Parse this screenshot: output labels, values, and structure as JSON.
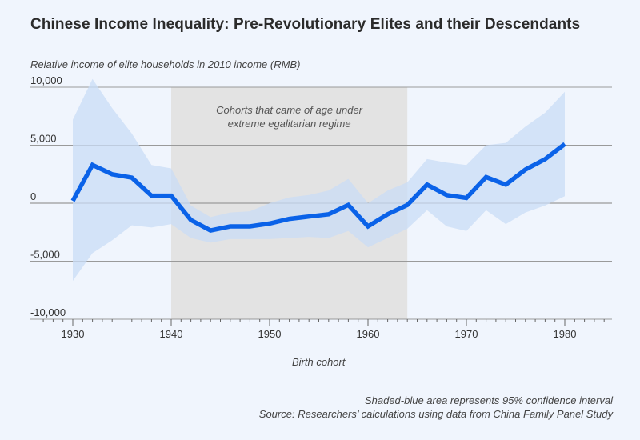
{
  "title": "Chinese Income Inequality: Pre-Revolutionary Elites and their Descendants",
  "footnotes": {
    "ci_note": "Shaded-blue area represents 95% confidence interval",
    "source": "Source: Researchers’ calculations using data from China Family Panel Study"
  },
  "colors": {
    "line": "#0a62e8",
    "band": "#c9dcf6",
    "shade": "#e3e3e3",
    "grid": "#9a9a9a",
    "background": "#f0f5fd"
  },
  "chart_data": {
    "type": "line",
    "title": "Chinese Income Inequality: Pre-Revolutionary Elites and their Descendants",
    "ylabel": "Relative income of elite households in 2010 income (RMB)",
    "xlabel": "Birth cohort",
    "xlim": [
      1926,
      1985
    ],
    "ylim": [
      -10000,
      10000
    ],
    "x_ticks": [
      1930,
      1940,
      1950,
      1960,
      1970,
      1980
    ],
    "x_tick_labels": [
      "1930",
      "1940",
      "1950",
      "1960",
      "1970",
      "1980"
    ],
    "y_ticks": [
      10000,
      5000,
      0,
      -5000,
      -10000
    ],
    "y_tick_labels": [
      "10,000",
      "5,000",
      "0",
      "-5,000",
      "-10,000"
    ],
    "grid": true,
    "x": [
      1930,
      1932,
      1934,
      1936,
      1938,
      1940,
      1942,
      1944,
      1946,
      1948,
      1950,
      1952,
      1954,
      1956,
      1958,
      1960,
      1962,
      1964,
      1966,
      1968,
      1970,
      1972,
      1974,
      1976,
      1978,
      1980
    ],
    "series": [
      {
        "name": "Relative income",
        "values": [
          200,
          3300,
          2500,
          2200,
          650,
          650,
          -1450,
          -2350,
          -2000,
          -2000,
          -1750,
          -1350,
          -1150,
          -950,
          -150,
          -2000,
          -950,
          -150,
          1600,
          700,
          450,
          2250,
          1600,
          2900,
          3800,
          5100
        ]
      }
    ],
    "confidence_interval": {
      "level": "95%",
      "upper": [
        7200,
        10700,
        8200,
        6000,
        3300,
        3000,
        -200,
        -1200,
        -800,
        -700,
        0,
        500,
        700,
        1100,
        2100,
        0,
        1100,
        1800,
        3800,
        3500,
        3300,
        5000,
        5200,
        6600,
        7800,
        9600
      ],
      "lower": [
        -6700,
        -4300,
        -3200,
        -1900,
        -2100,
        -1800,
        -3000,
        -3400,
        -3100,
        -3100,
        -3100,
        -3000,
        -2900,
        -3000,
        -2400,
        -3800,
        -3000,
        -2200,
        -600,
        -2000,
        -2400,
        -600,
        -1800,
        -800,
        -200,
        600
      ]
    },
    "shaded_region": {
      "x_range": [
        1940,
        1964
      ],
      "label_line1": "Cohorts that came of age under",
      "label_line2": "extreme egalitarian regime"
    }
  }
}
